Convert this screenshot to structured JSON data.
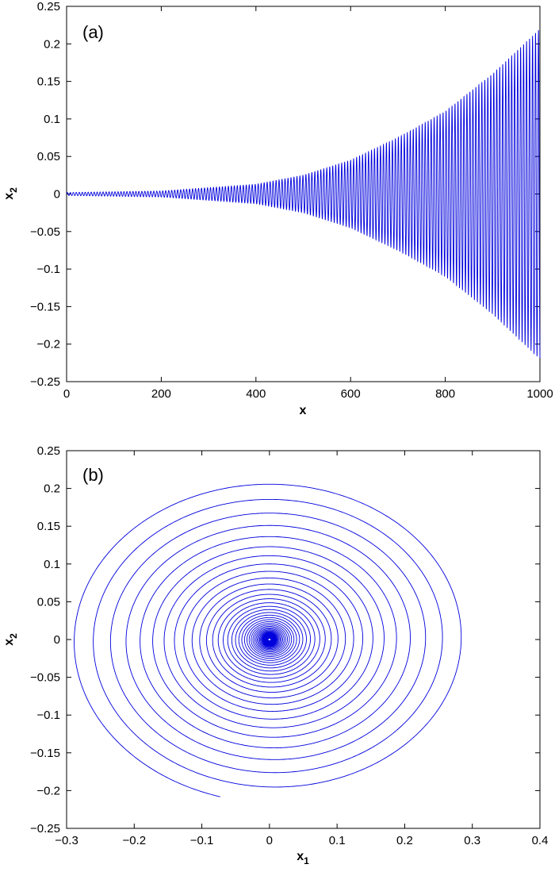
{
  "chart_data": [
    {
      "type": "line",
      "panel_label": "(a)",
      "xlabel": "x",
      "ylabel": "x",
      "ylabel_subscript": "2",
      "xlim": [
        0,
        1000
      ],
      "ylim": [
        -0.25,
        0.25
      ],
      "xticks": [
        0,
        200,
        400,
        600,
        800,
        1000
      ],
      "yticks": [
        -0.25,
        -0.2,
        -0.15,
        -0.1,
        -0.05,
        0,
        0.05,
        0.1,
        0.15,
        0.2,
        0.25
      ],
      "xtick_labels": [
        "0",
        "200",
        "400",
        "600",
        "800",
        "1000"
      ],
      "ytick_labels": [
        "−0.25",
        "−0.2",
        "−0.15",
        "−0.1",
        "−0.05",
        "0",
        "0.05",
        "0.1",
        "0.15",
        "0.2",
        "0.25"
      ],
      "grid": false,
      "color": "#0000dd",
      "series": [
        {
          "description": "growing oscillation x2(t) = A(t)·sin(ω t), envelope grows exponentially",
          "envelope_points": [
            [
              0,
              0.002
            ],
            [
              200,
              0.004
            ],
            [
              400,
              0.013
            ],
            [
              500,
              0.025
            ],
            [
              600,
              0.045
            ],
            [
              700,
              0.075
            ],
            [
              800,
              0.11
            ],
            [
              900,
              0.16
            ],
            [
              1000,
              0.22
            ]
          ],
          "oscillation_period": 6.3
        }
      ]
    },
    {
      "type": "line",
      "panel_label": "(b)",
      "xlabel": "x",
      "xlabel_subscript": "1",
      "ylabel": "x",
      "ylabel_subscript": "2",
      "xlim": [
        -0.3,
        0.4
      ],
      "ylim": [
        -0.25,
        0.25
      ],
      "xticks": [
        -0.3,
        -0.2,
        -0.1,
        0,
        0.1,
        0.2,
        0.3,
        0.4
      ],
      "yticks": [
        -0.25,
        -0.2,
        -0.15,
        -0.1,
        -0.05,
        0,
        0.05,
        0.1,
        0.15,
        0.2,
        0.25
      ],
      "xtick_labels": [
        "−0.3",
        "−0.2",
        "−0.1",
        "0",
        "0.1",
        "0.2",
        "0.3",
        "0.4"
      ],
      "ytick_labels": [
        "−0.25",
        "−0.2",
        "−0.15",
        "−0.1",
        "−0.05",
        "0",
        "0.05",
        "0.1",
        "0.15",
        "0.2",
        "0.25"
      ],
      "grid": false,
      "color": "#0000dd",
      "series": [
        {
          "description": "outward spiral phase portrait (x1, x2), start near origin",
          "outer_extent": {
            "x1_max": 0.305,
            "x1_min": -0.295,
            "x2_max": 0.213,
            "x2_min": -0.218
          },
          "end_point": [
            -0.06,
            -0.218
          ]
        }
      ]
    }
  ]
}
